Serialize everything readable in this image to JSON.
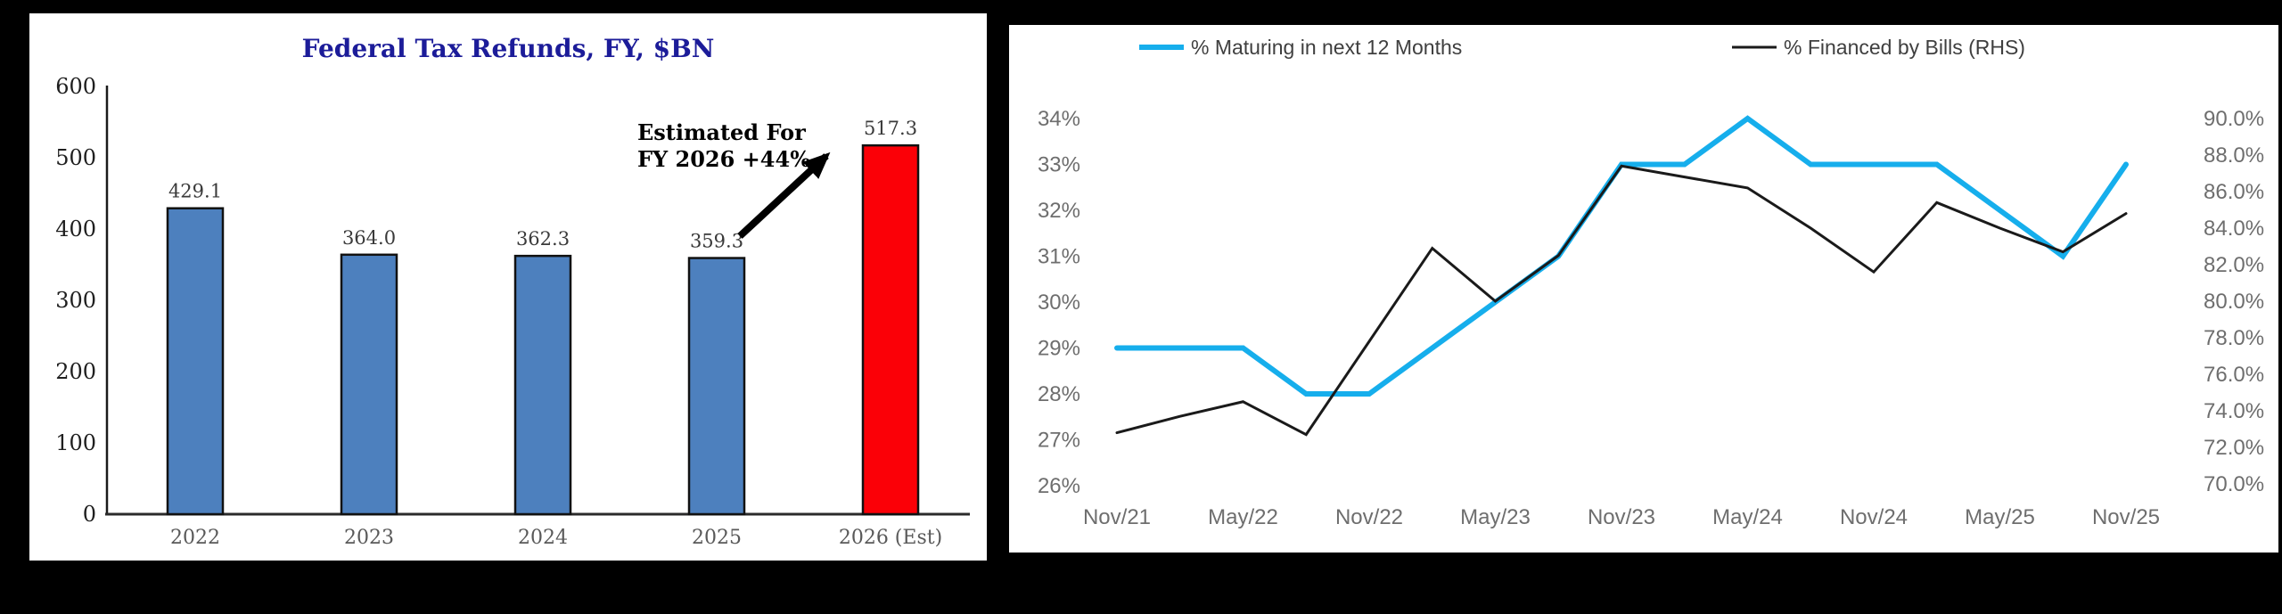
{
  "page": {
    "background_color": "#000000"
  },
  "chart_data": [
    {
      "type": "bar",
      "title": "Federal Tax Refunds, FY, $BN",
      "title_color": "#1c1c99",
      "categories": [
        "2022",
        "2023",
        "2024",
        "2025",
        "2026 (Est)"
      ],
      "values": [
        429.1,
        364.0,
        362.3,
        359.3,
        517.3
      ],
      "value_labels": [
        "429.1",
        "364.0",
        "362.3",
        "359.3",
        "517.3"
      ],
      "bar_colors": [
        "#4d80be",
        "#4d80be",
        "#4d80be",
        "#4d80be",
        "#fb0007"
      ],
      "bar_border_color": "#111111",
      "xlabel": "",
      "ylabel": "",
      "ylim": [
        0,
        600
      ],
      "ytick_labels": [
        "600",
        "500",
        "400",
        "300",
        "200",
        "100",
        "0"
      ],
      "ytick_values": [
        600,
        500,
        400,
        300,
        200,
        100,
        0
      ],
      "grid": "off",
      "annotation": {
        "line1": "Estimated For",
        "line2": "FY 2026 +44%",
        "arrow": "points from 2025 bar label toward top of red 2026 estimate bar"
      },
      "axis_label_color": "#1f1f1f",
      "xtick_label_color": "#595959",
      "value_label_color": "#3a3a3a"
    },
    {
      "type": "line",
      "title": "",
      "x_tick_labels": [
        "Nov/21",
        "May/22",
        "Nov/22",
        "May/23",
        "Nov/23",
        "May/24",
        "Nov/24",
        "May/25",
        "Nov/25"
      ],
      "x_points": [
        "Nov/21",
        "Feb/22",
        "May/22",
        "Aug/22",
        "Nov/22",
        "Feb/23",
        "May/23",
        "Aug/23",
        "Nov/23",
        "Feb/24",
        "May/24",
        "Aug/24",
        "Nov/24",
        "Feb/25",
        "May/25",
        "Aug/25",
        "Nov/25"
      ],
      "left_axis": {
        "tick_labels": [
          "34%",
          "33%",
          "32%",
          "31%",
          "30%",
          "29%",
          "28%",
          "27%",
          "26%"
        ],
        "min": 26,
        "max": 34
      },
      "right_axis": {
        "tick_labels": [
          "90.0%",
          "88.0%",
          "86.0%",
          "84.0%",
          "82.0%",
          "80.0%",
          "78.0%",
          "76.0%",
          "74.0%",
          "72.0%",
          "70.0%"
        ],
        "min": 70,
        "max": 90
      },
      "series": [
        {
          "name": "% Maturing in next 12 Months",
          "axis": "left",
          "color": "#16aeec",
          "values": [
            29,
            29,
            29,
            28,
            28,
            29,
            30,
            31,
            33,
            33,
            34,
            33,
            33,
            33,
            32,
            31,
            33
          ]
        },
        {
          "name": "% Financed by Bills (RHS)",
          "axis": "right",
          "color": "#1a1a1a",
          "values": [
            72.8,
            73.7,
            74.5,
            72.7,
            77.8,
            82.9,
            80.0,
            82.5,
            87.4,
            86.8,
            86.2,
            84.0,
            81.6,
            85.4,
            84.0,
            82.7,
            84.8
          ]
        }
      ],
      "legend_position": "top",
      "grid": "off",
      "tick_label_color": "#6e6e6e",
      "legend_text_color": "#3f3f3f"
    }
  ]
}
